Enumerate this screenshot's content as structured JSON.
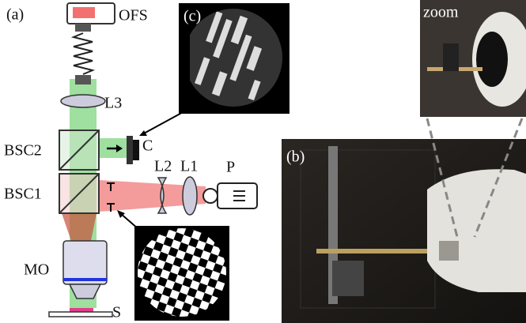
{
  "panels": {
    "a": "(a)",
    "b": "(b)",
    "c": "(c)",
    "zoom": "zoom"
  },
  "components": {
    "ofs": "OFS",
    "l3": "L3",
    "bsc2": "BSC2",
    "c": "C",
    "bsc1": "BSC1",
    "l2": "L2",
    "l1": "L1",
    "p": "P",
    "mo": "MO",
    "s": "S"
  }
}
